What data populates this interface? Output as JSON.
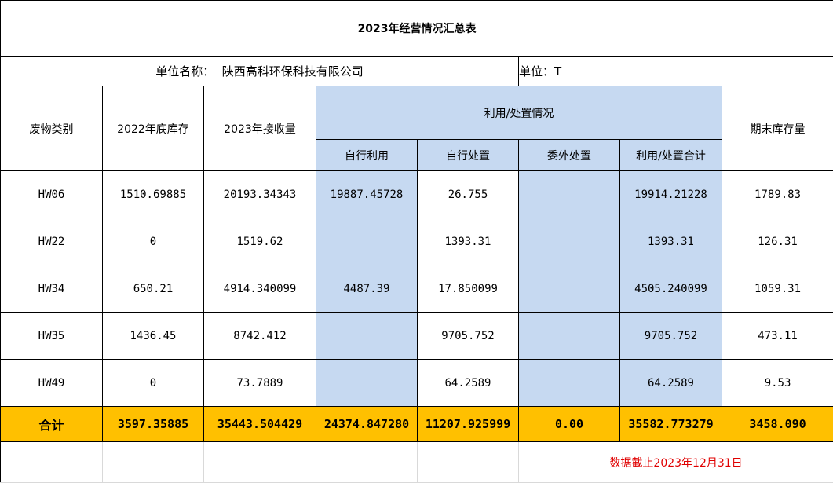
{
  "title": "2023年经营情况汇总表",
  "company_label": "单位名称：",
  "company_name": "陕西高科环保科技有限公司",
  "unit_text": "单位：T",
  "headers": {
    "category": "废物类别",
    "stock_2022": "2022年底库存",
    "received_2023": "2023年接收量",
    "usage_group": "利用/处置情况",
    "self_use": "自行利用",
    "self_disposal": "自行处置",
    "outsourced": "委外处置",
    "usage_total": "利用/处置合计",
    "ending_stock": "期末库存量"
  },
  "rows": [
    {
      "category": "HW06",
      "stock_2022": "1510.69885",
      "received_2023": "20193.34343",
      "self_use": "19887.45728",
      "self_disposal": "26.755",
      "outsourced": "",
      "usage_total": "19914.21228",
      "ending_stock": "1789.83"
    },
    {
      "category": "HW22",
      "stock_2022": "0",
      "received_2023": "1519.62",
      "self_use": "",
      "self_disposal": "1393.31",
      "outsourced": "",
      "usage_total": "1393.31",
      "ending_stock": "126.31"
    },
    {
      "category": "HW34",
      "stock_2022": "650.21",
      "received_2023": "4914.340099",
      "self_use": "4487.39",
      "self_disposal": "17.850099",
      "outsourced": "",
      "usage_total": "4505.240099",
      "ending_stock": "1059.31"
    },
    {
      "category": "HW35",
      "stock_2022": "1436.45",
      "received_2023": "8742.412",
      "self_use": "",
      "self_disposal": "9705.752",
      "outsourced": "",
      "usage_total": "9705.752",
      "ending_stock": "473.11"
    },
    {
      "category": "HW49",
      "stock_2022": "0",
      "received_2023": "73.7889",
      "self_use": "",
      "self_disposal": "64.2589",
      "outsourced": "",
      "usage_total": "64.2589",
      "ending_stock": "9.53"
    }
  ],
  "total": {
    "label": "合计",
    "stock_2022": "3597.35885",
    "received_2023": "35443.504429",
    "self_use": "24374.847280",
    "self_disposal": "11207.925999",
    "outsourced": "0.00",
    "usage_total": "35582.773279",
    "ending_stock": "3458.090"
  },
  "note": "数据截止2023年12月31日",
  "colors": {
    "blue": "#c6d9f1",
    "total": "#ffc000",
    "note": "#e00000"
  }
}
